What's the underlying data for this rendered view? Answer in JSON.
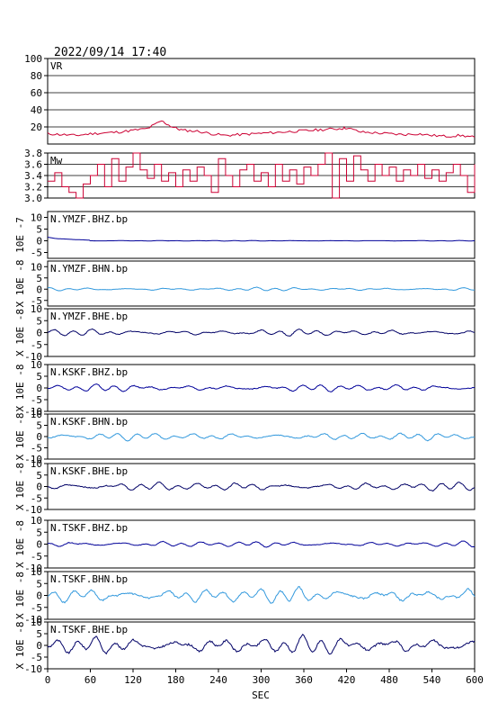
{
  "header": {
    "timestamp": "2022/09/14 17:40"
  },
  "chart_data": {
    "type": "line",
    "x_axis": {
      "label": "SEC",
      "min": 0,
      "max": 600,
      "ticks": [
        0,
        60,
        120,
        180,
        240,
        300,
        360,
        420,
        480,
        540,
        600
      ]
    },
    "panels": [
      {
        "id": "vr",
        "label": "VR",
        "ylim": [
          0,
          100
        ],
        "yticks": [
          20,
          40,
          60,
          80,
          100
        ],
        "ytick_labels": [
          "20",
          "40",
          "60",
          "80",
          "100"
        ],
        "color": "#cc0033",
        "grid": true,
        "series": [
          [
            0,
            12
          ],
          [
            20,
            11
          ],
          [
            40,
            10
          ],
          [
            60,
            12
          ],
          [
            80,
            13
          ],
          [
            100,
            14
          ],
          [
            120,
            16
          ],
          [
            140,
            18
          ],
          [
            160,
            27
          ],
          [
            175,
            20
          ],
          [
            190,
            16
          ],
          [
            210,
            15
          ],
          [
            230,
            12
          ],
          [
            250,
            10
          ],
          [
            270,
            11
          ],
          [
            290,
            12
          ],
          [
            310,
            13
          ],
          [
            330,
            14
          ],
          [
            350,
            15
          ],
          [
            370,
            16
          ],
          [
            390,
            17
          ],
          [
            410,
            18
          ],
          [
            420,
            19
          ],
          [
            440,
            14
          ],
          [
            460,
            13
          ],
          [
            480,
            12
          ],
          [
            500,
            11
          ],
          [
            520,
            12
          ],
          [
            540,
            10
          ],
          [
            560,
            9
          ],
          [
            580,
            10
          ],
          [
            600,
            8
          ]
        ]
      },
      {
        "id": "mw",
        "label": "Mw",
        "ylim": [
          3.0,
          3.8
        ],
        "yticks": [
          3.0,
          3.2,
          3.4,
          3.6,
          3.8
        ],
        "ytick_labels": [
          "3.0",
          "3.2",
          "3.4",
          "3.6",
          "3.8"
        ],
        "color": "#cc0033",
        "grid": true,
        "step": true,
        "series": [
          [
            0,
            3.3
          ],
          [
            10,
            3.45
          ],
          [
            20,
            3.2
          ],
          [
            30,
            3.1
          ],
          [
            40,
            3.0
          ],
          [
            50,
            3.25
          ],
          [
            60,
            3.4
          ],
          [
            70,
            3.6
          ],
          [
            80,
            3.2
          ],
          [
            90,
            3.7
          ],
          [
            100,
            3.3
          ],
          [
            110,
            3.55
          ],
          [
            120,
            3.8
          ],
          [
            130,
            3.5
          ],
          [
            140,
            3.35
          ],
          [
            150,
            3.6
          ],
          [
            160,
            3.3
          ],
          [
            170,
            3.45
          ],
          [
            180,
            3.2
          ],
          [
            190,
            3.5
          ],
          [
            200,
            3.3
          ],
          [
            210,
            3.55
          ],
          [
            220,
            3.4
          ],
          [
            230,
            3.1
          ],
          [
            240,
            3.7
          ],
          [
            250,
            3.4
          ],
          [
            260,
            3.2
          ],
          [
            270,
            3.5
          ],
          [
            280,
            3.6
          ],
          [
            290,
            3.3
          ],
          [
            300,
            3.45
          ],
          [
            310,
            3.2
          ],
          [
            320,
            3.6
          ],
          [
            330,
            3.3
          ],
          [
            340,
            3.5
          ],
          [
            350,
            3.25
          ],
          [
            360,
            3.55
          ],
          [
            370,
            3.4
          ],
          [
            380,
            3.6
          ],
          [
            390,
            3.8
          ],
          [
            400,
            3.0
          ],
          [
            410,
            3.7
          ],
          [
            420,
            3.3
          ],
          [
            430,
            3.75
          ],
          [
            440,
            3.5
          ],
          [
            450,
            3.3
          ],
          [
            460,
            3.6
          ],
          [
            470,
            3.4
          ],
          [
            480,
            3.55
          ],
          [
            490,
            3.3
          ],
          [
            500,
            3.5
          ],
          [
            510,
            3.4
          ],
          [
            520,
            3.6
          ],
          [
            530,
            3.35
          ],
          [
            540,
            3.5
          ],
          [
            550,
            3.3
          ],
          [
            560,
            3.45
          ],
          [
            570,
            3.6
          ],
          [
            580,
            3.4
          ],
          [
            590,
            3.1
          ],
          [
            600,
            3.6
          ]
        ]
      },
      {
        "id": "ymzf-bhz",
        "label": "N.YMZF.BHZ.bp",
        "unit_label": "10E -7",
        "ylim": [
          -7.5,
          12.5
        ],
        "yticks": [
          -5,
          0,
          5,
          10
        ],
        "ytick_labels": [
          "-5",
          "0",
          "5",
          "10"
        ],
        "color": "#000099",
        "amp": 0.3,
        "seed": 1,
        "start_pulse": 1.5
      },
      {
        "id": "ymzf-bhn",
        "label": "N.YMZF.BHN.bp",
        "unit_label": "X 10E -8",
        "ylim": [
          -7.5,
          12.5
        ],
        "yticks": [
          -5,
          0,
          5,
          10
        ],
        "ytick_labels": [
          "-5",
          "0",
          "5",
          "10"
        ],
        "color": "#3399dd",
        "amp": 0.5,
        "seed": 2
      },
      {
        "id": "ymzf-bhe",
        "label": "N.YMZF.BHE.bp",
        "unit_label": "X 10E -8",
        "ylim": [
          -10,
          10
        ],
        "yticks": [
          -10,
          -5,
          0,
          5,
          10
        ],
        "ytick_labels": [
          "-10",
          "-5",
          "0",
          "5",
          "10"
        ],
        "color": "#000066",
        "amp": 0.9,
        "seed": 3
      },
      {
        "id": "kskf-bhz",
        "label": "N.KSKF.BHZ.bp",
        "unit_label": "X 10E -8",
        "ylim": [
          -10,
          10
        ],
        "yticks": [
          -10,
          -5,
          0,
          5,
          10
        ],
        "ytick_labels": [
          "-10",
          "-5",
          "0",
          "5",
          "10"
        ],
        "color": "#000099",
        "amp": 1.0,
        "seed": 4
      },
      {
        "id": "kskf-bhn",
        "label": "N.KSKF.BHN.bp",
        "unit_label": "X 10E -8",
        "ylim": [
          -10,
          10
        ],
        "yticks": [
          -10,
          -5,
          0,
          5,
          10
        ],
        "ytick_labels": [
          "-10",
          "-5",
          "0",
          "5",
          "10"
        ],
        "color": "#3399dd",
        "amp": 1.1,
        "seed": 5
      },
      {
        "id": "kskf-bhe",
        "label": "N.KSKF.BHE.bp",
        "unit_label": "X 10E -8",
        "ylim": [
          -10,
          10
        ],
        "yticks": [
          -10,
          -5,
          0,
          5,
          10
        ],
        "ytick_labels": [
          "-10",
          "-5",
          "0",
          "5",
          "10"
        ],
        "color": "#000066",
        "amp": 1.2,
        "seed": 6
      },
      {
        "id": "tskf-bhz",
        "label": "N.TSKF.BHZ.bp",
        "unit_label": "X 10E -8",
        "ylim": [
          -10,
          10
        ],
        "yticks": [
          -10,
          -5,
          0,
          5,
          10
        ],
        "ytick_labels": [
          "-10",
          "-5",
          "0",
          "5",
          "10"
        ],
        "color": "#000099",
        "amp": 0.8,
        "seed": 7
      },
      {
        "id": "tskf-bhn",
        "label": "N.TSKF.BHN.bp",
        "unit_label": "X 10E -8",
        "ylim": [
          -10,
          10
        ],
        "yticks": [
          -10,
          -5,
          0,
          5,
          10
        ],
        "ytick_labels": [
          "-10",
          "-5",
          "0",
          "5",
          "10"
        ],
        "color": "#3399dd",
        "amp": 2.2,
        "seed": 8
      },
      {
        "id": "tskf-bhe",
        "label": "N.TSKF.BHE.bp",
        "unit_label": "X 10E -8",
        "ylim": [
          -10,
          10
        ],
        "yticks": [
          -10,
          -5,
          0,
          5,
          10
        ],
        "ytick_labels": [
          "-10",
          "-5",
          "0",
          "5",
          "10"
        ],
        "color": "#000066",
        "amp": 2.6,
        "seed": 9
      }
    ]
  }
}
